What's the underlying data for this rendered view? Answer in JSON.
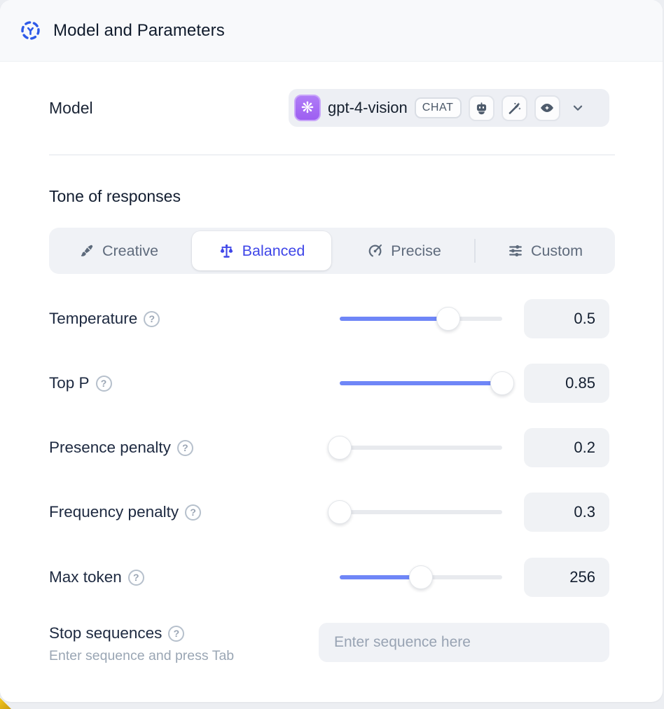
{
  "header": {
    "title": "Model and Parameters"
  },
  "model_row": {
    "label": "Model",
    "selected_model": "gpt-4-vision",
    "badge": "CHAT",
    "capability_icons": [
      "robot-icon",
      "magic-wand-icon",
      "vision-eye-icon"
    ]
  },
  "tone": {
    "heading": "Tone of responses",
    "selected_tab": "Balanced",
    "tabs": [
      {
        "label": "Creative",
        "icon": "paintbrush-icon",
        "selected": false
      },
      {
        "label": "Balanced",
        "icon": "balance-scale-icon",
        "selected": true
      },
      {
        "label": "Precise",
        "icon": "target-icon",
        "selected": false
      },
      {
        "label": "Custom",
        "icon": "sliders-icon",
        "selected": false
      }
    ]
  },
  "parameters": [
    {
      "label": "Temperature",
      "value": "0.5",
      "fill_percent": 67
    },
    {
      "label": "Top P",
      "value": "0.85",
      "fill_percent": 100
    },
    {
      "label": "Presence penalty",
      "value": "0.2",
      "fill_percent": 0
    },
    {
      "label": "Frequency penalty",
      "value": "0.3",
      "fill_percent": 0
    },
    {
      "label": "Max token",
      "value": "256",
      "fill_percent": 50
    }
  ],
  "stop_sequences": {
    "label": "Stop sequences",
    "hint": "Enter sequence and press Tab",
    "placeholder": "Enter sequence here"
  },
  "icons": {
    "help_glyph": "?",
    "openai_logo_glyph": "❋"
  },
  "colors": {
    "accent_slider_blue": "#6F86F7",
    "selected_tab_blue": "#3F46E8",
    "header_icon_blue": "#2E5AE8",
    "model_logo_purple": "#A06BF2",
    "panel_header_bg": "#F8F9FB",
    "control_bg": "#F0F2F6"
  }
}
